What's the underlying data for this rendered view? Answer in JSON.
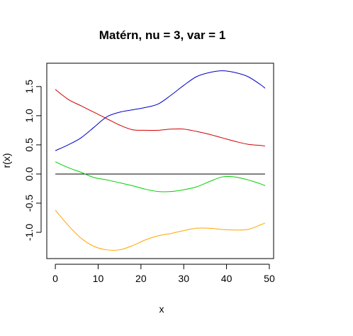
{
  "chart_data": {
    "type": "line",
    "title": "Matérn, nu = 3, var = 1",
    "xlabel": "x",
    "ylabel": "r(x)",
    "xlim": [
      -2,
      51
    ],
    "ylim": [
      -1.45,
      1.9
    ],
    "x_ticks": [
      0,
      10,
      20,
      30,
      40,
      50
    ],
    "x_tick_labels": [
      "0",
      "10",
      "20",
      "30",
      "40",
      "50"
    ],
    "y_ticks": [
      -1.0,
      -0.5,
      0.0,
      0.5,
      1.0,
      1.5
    ],
    "y_tick_labels": [
      "-1.0",
      "-0.5",
      "0.0",
      "0.5",
      "1.0",
      "1.5"
    ],
    "grid": false,
    "series": [
      {
        "color": "#d00000",
        "x": [
          0,
          3,
          6,
          9,
          12,
          15,
          18,
          21,
          24,
          27,
          30,
          33,
          36,
          39,
          42,
          45,
          48,
          49
        ],
        "y": [
          1.45,
          1.28,
          1.17,
          1.06,
          0.95,
          0.84,
          0.76,
          0.75,
          0.75,
          0.77,
          0.77,
          0.73,
          0.68,
          0.62,
          0.56,
          0.51,
          0.49,
          0.48
        ]
      },
      {
        "color": "#0000c8",
        "x": [
          0,
          3,
          6,
          9,
          12,
          15,
          18,
          21,
          24,
          27,
          30,
          33,
          36,
          39,
          42,
          45,
          48,
          49
        ],
        "y": [
          0.4,
          0.5,
          0.62,
          0.8,
          0.98,
          1.06,
          1.1,
          1.14,
          1.2,
          1.35,
          1.52,
          1.67,
          1.74,
          1.77,
          1.74,
          1.67,
          1.53,
          1.47
        ]
      },
      {
        "color": "#00d000",
        "x": [
          0,
          3,
          6,
          9,
          12,
          15,
          18,
          21,
          24,
          27,
          30,
          33,
          36,
          39,
          42,
          45,
          48,
          49
        ],
        "y": [
          0.21,
          0.11,
          0.03,
          -0.06,
          -0.1,
          -0.15,
          -0.2,
          -0.26,
          -0.3,
          -0.3,
          -0.27,
          -0.22,
          -0.13,
          -0.05,
          -0.05,
          -0.1,
          -0.17,
          -0.2
        ]
      },
      {
        "color": "#ffa500",
        "x": [
          0,
          3,
          6,
          9,
          12,
          15,
          18,
          21,
          24,
          27,
          30,
          33,
          36,
          39,
          42,
          45,
          48,
          49
        ],
        "y": [
          -0.62,
          -0.88,
          -1.1,
          -1.24,
          -1.3,
          -1.3,
          -1.23,
          -1.13,
          -1.06,
          -1.02,
          -0.97,
          -0.93,
          -0.93,
          -0.95,
          -0.96,
          -0.95,
          -0.87,
          -0.84
        ]
      }
    ],
    "reference_line": {
      "y": 0.0,
      "x_range": [
        0,
        49
      ],
      "color": "#000000"
    }
  }
}
